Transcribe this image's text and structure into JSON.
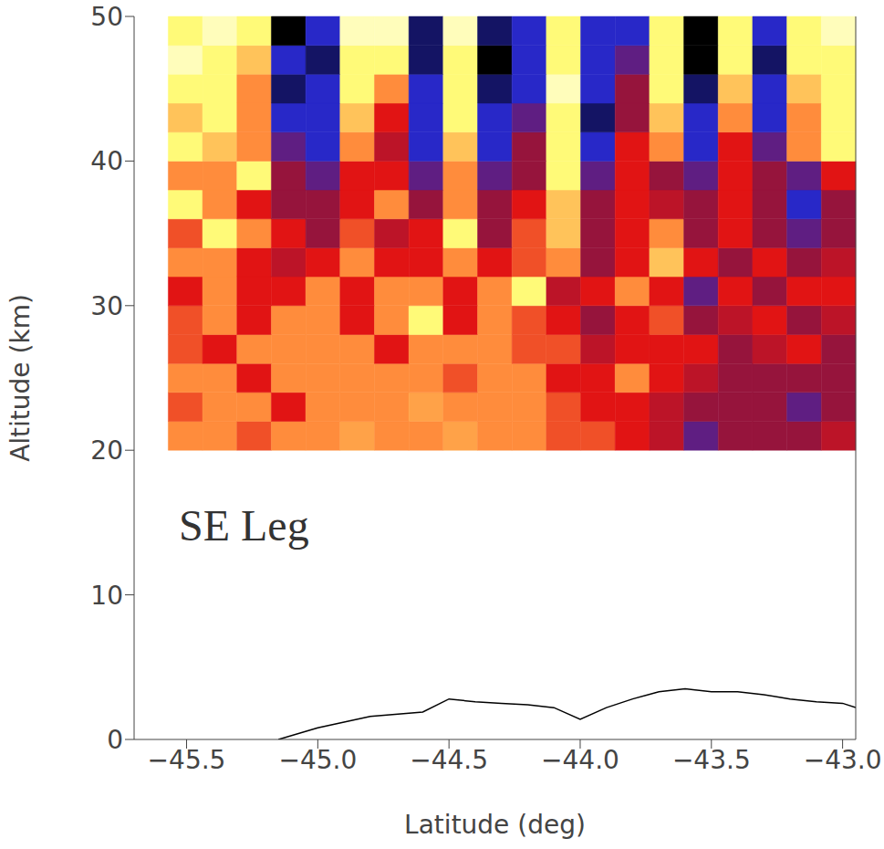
{
  "chart_data": {
    "type": "heatmap",
    "annotation": "SE Leg",
    "x_label": "Latitude (deg)",
    "y_label": "Altitude (km)",
    "xlim": [
      -45.7,
      -42.95
    ],
    "xticks": [
      {
        "value": -45.5,
        "label": "−45.5"
      },
      {
        "value": -45,
        "label": "−45.0"
      },
      {
        "value": -44.5,
        "label": "−44.5"
      },
      {
        "value": -44,
        "label": "−44.0"
      },
      {
        "value": -43.5,
        "label": "−43.5"
      },
      {
        "value": -43,
        "label": "−43.0"
      }
    ],
    "ylim": [
      0,
      50
    ],
    "yticks": [
      0,
      10,
      20,
      30,
      40,
      50
    ],
    "color_range": [
      -3,
      3
    ],
    "cells": {
      "lat_edges": [
        -45.57,
        -45.439,
        -45.308,
        -45.177,
        -45.046,
        -44.915,
        -44.784,
        -44.653,
        -44.522,
        -44.391,
        -44.26,
        -44.129,
        -43.998,
        -43.867,
        -43.736,
        -43.605,
        -43.474,
        -43.343,
        -43.212,
        -43.081,
        -42.95
      ],
      "alt_edges": [
        20,
        22,
        24,
        26,
        28,
        30,
        32,
        34,
        36,
        38,
        40,
        42,
        44,
        46,
        48,
        50
      ],
      "values": [
        [
          1,
          1,
          0.5,
          1,
          1,
          1.2,
          1,
          1,
          1.2,
          1,
          1,
          0.5,
          0.5,
          0,
          -0.5,
          -1.5,
          -1,
          -1,
          -1,
          -0.5
        ],
        [
          0.5,
          1,
          1,
          0,
          1,
          1,
          1,
          1.2,
          1,
          1,
          1,
          0.5,
          0,
          0,
          -0.5,
          -1,
          -1,
          -1,
          -1.5,
          -1
        ],
        [
          1,
          1,
          0,
          1,
          1,
          1,
          1,
          1,
          0.5,
          1,
          1,
          0,
          0,
          1,
          0,
          -0.5,
          -1,
          -1,
          -1,
          -1
        ],
        [
          0.5,
          0,
          1,
          1,
          1,
          1,
          0,
          1,
          1,
          1,
          0.5,
          0.5,
          -0.5,
          0,
          0,
          0,
          -1,
          -0.5,
          0,
          -1
        ],
        [
          0.5,
          1,
          0,
          1,
          1,
          0,
          1,
          2,
          0,
          1,
          0.5,
          0,
          -1,
          0,
          0.5,
          -1,
          -0.5,
          0,
          -1,
          -0.5
        ],
        [
          0,
          1,
          0,
          0,
          1,
          0,
          1,
          1,
          0,
          1,
          2,
          -0.5,
          0,
          1,
          0,
          -1.5,
          0,
          -1,
          0,
          0
        ],
        [
          1,
          1,
          0,
          -0.5,
          0,
          1,
          0,
          0,
          1,
          0,
          0.5,
          1,
          -1,
          0,
          1.5,
          0,
          -1,
          0,
          -1,
          -0.5
        ],
        [
          0.5,
          2,
          1,
          0,
          -1,
          0.5,
          -0.5,
          0,
          2,
          -1,
          0.5,
          1.5,
          -1,
          0,
          1,
          -1,
          0,
          -1,
          -1.5,
          -1
        ],
        [
          2,
          1,
          0,
          -1,
          -1,
          0,
          1,
          -1,
          1,
          -1,
          0,
          1.5,
          -1,
          0,
          -0.5,
          -1,
          0,
          -1,
          -2,
          -1
        ],
        [
          1,
          1,
          2,
          -1,
          -1.5,
          0,
          0,
          -1.5,
          1,
          -1.5,
          -1,
          2,
          -1.5,
          0,
          -1,
          -1.5,
          0,
          -1,
          -1.5,
          0
        ],
        [
          2,
          1.5,
          1,
          -1.5,
          -2,
          1,
          -0.5,
          -2,
          1.5,
          -2,
          -1,
          2,
          -2,
          0,
          1,
          -2,
          0,
          -1.5,
          1,
          2
        ],
        [
          1.5,
          2,
          1,
          -2,
          -2,
          1.5,
          0,
          -2,
          2,
          -2,
          -1.5,
          2,
          -2.5,
          -1,
          1.5,
          -2,
          1,
          -2,
          1,
          2
        ],
        [
          2,
          2,
          1,
          -2.5,
          -2,
          2,
          1,
          -2,
          2,
          -2.5,
          -2,
          2.5,
          -2,
          -1,
          2,
          -2.5,
          1.5,
          -2,
          1.5,
          2
        ],
        [
          2.5,
          2,
          1.5,
          -2,
          -2.5,
          2,
          2,
          -2.5,
          2,
          -3,
          -2,
          2,
          -2,
          -1.5,
          2,
          -3,
          2,
          -2.5,
          2,
          2
        ],
        [
          2,
          2.5,
          2,
          -3,
          -2,
          2.5,
          2.5,
          -2.5,
          2.5,
          -2.5,
          -2,
          2,
          -2,
          -2,
          2,
          -3,
          2,
          -2,
          2,
          2.5
        ]
      ]
    },
    "line": {
      "color": "#000000",
      "x": [
        -45.15,
        -45.0,
        -44.8,
        -44.6,
        -44.5,
        -44.4,
        -44.3,
        -44.2,
        -44.1,
        -44.0,
        -43.9,
        -43.8,
        -43.7,
        -43.6,
        -43.5,
        -43.4,
        -43.3,
        -43.2,
        -43.1,
        -43.0,
        -42.95
      ],
      "values": [
        0,
        0.8,
        1.6,
        1.9,
        2.8,
        2.6,
        2.5,
        2.4,
        2.2,
        1.4,
        2.2,
        2.8,
        3.3,
        3.5,
        3.3,
        3.3,
        3.1,
        2.8,
        2.6,
        2.5,
        2.2
      ]
    }
  }
}
